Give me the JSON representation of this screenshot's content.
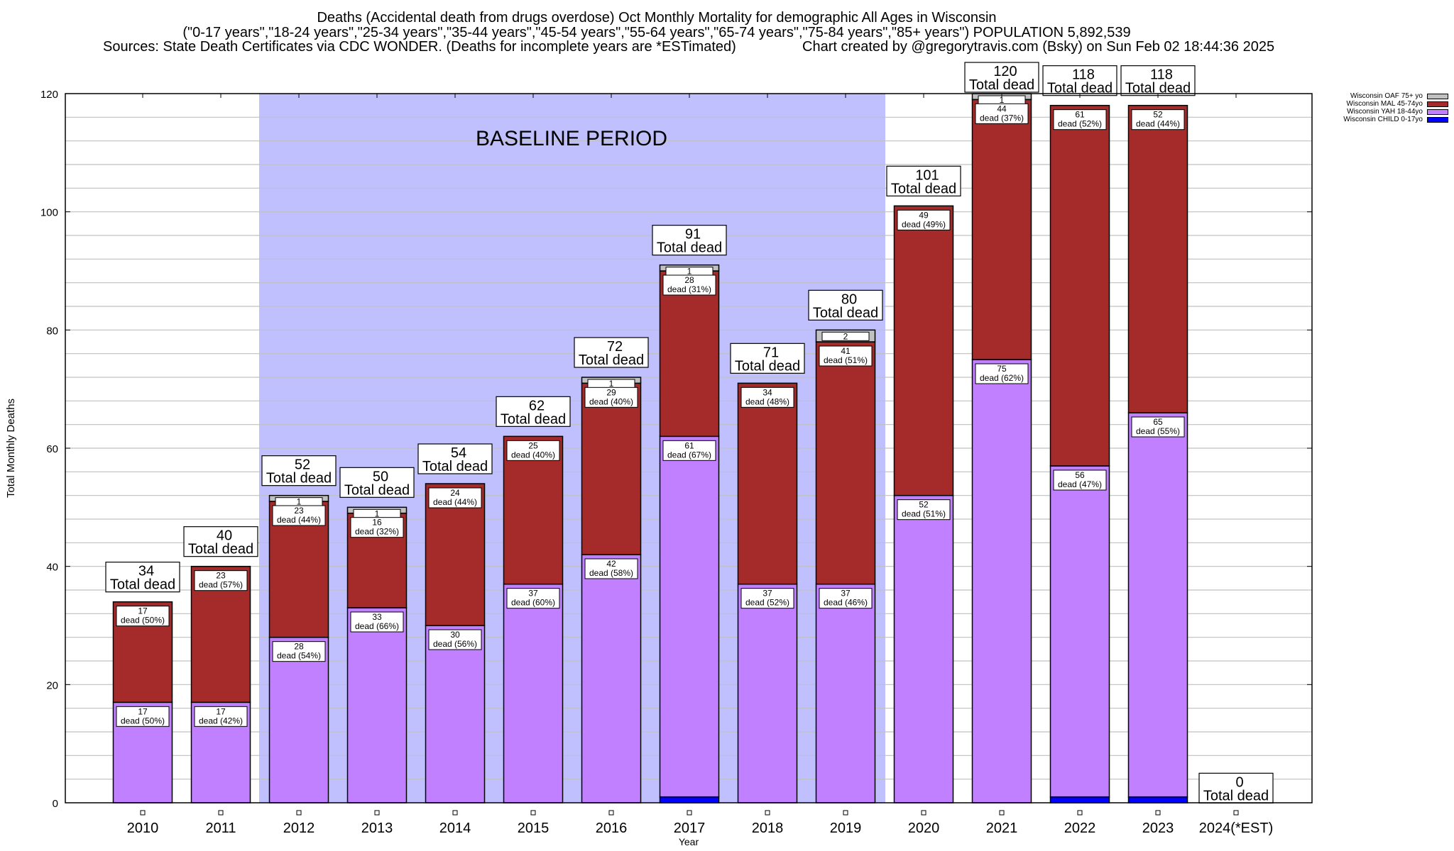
{
  "chart_data": {
    "type": "bar",
    "stacked": true,
    "title_lines": [
      "Deaths (Accidental death from drugs overdose) Oct Monthly Mortality for demographic All Ages in Wisconsin",
      "(\"0-17 years\",\"18-24 years\",\"25-34 years\",\"35-44 years\",\"45-54 years\",\"55-64 years\",\"65-74 years\",\"75-84 years\",\"85+ years\") POPULATION 5,892,539"
    ],
    "sources_text": "Sources: State Death Certificates via CDC WONDER. (Deaths for incomplete years are *ESTimated)",
    "credit_text": "Chart created by @gregorytravis.com (Bsky) on Sun Feb 02 18:44:36 2025",
    "xlabel": "Year",
    "ylabel": "Total Monthly Deaths",
    "ylim": [
      0,
      120
    ],
    "y_ticks": [
      0,
      20,
      40,
      60,
      80,
      100,
      120
    ],
    "grid_step": 4,
    "grid": true,
    "legend_position": "top-right",
    "categories": [
      "2010",
      "2011",
      "2012",
      "2013",
      "2014",
      "2015",
      "2016",
      "2017",
      "2018",
      "2019",
      "2020",
      "2021",
      "2022",
      "2023",
      "2024(*EST)"
    ],
    "series": [
      {
        "name": "Wisconsin CHILD 0-17yo",
        "color": "#0000ff",
        "values": [
          0,
          0,
          0,
          0,
          0,
          0,
          0,
          1,
          0,
          0,
          0,
          0,
          1,
          1,
          0
        ]
      },
      {
        "name": "Wisconsin YAH 18-44yo",
        "color": "#c080ff",
        "values": [
          17,
          17,
          28,
          33,
          30,
          37,
          42,
          61,
          37,
          37,
          52,
          75,
          56,
          65,
          0
        ]
      },
      {
        "name": "Wisconsin MAL 45-74yo",
        "color": "#a52a2a",
        "values": [
          17,
          23,
          23,
          16,
          24,
          25,
          29,
          28,
          34,
          41,
          49,
          44,
          61,
          52,
          0
        ]
      },
      {
        "name": "Wisconsin OAF 75+ yo",
        "color": "#c0c0c0",
        "values": [
          0,
          0,
          1,
          1,
          0,
          0,
          1,
          1,
          0,
          2,
          0,
          1,
          0,
          0,
          0
        ]
      }
    ],
    "totals": [
      34,
      40,
      52,
      50,
      54,
      62,
      72,
      91,
      71,
      80,
      101,
      120,
      118,
      118,
      0
    ],
    "total_label_suffix": "Total dead",
    "segment_labels": {
      "yah": [
        "17\ndead (50%)",
        "17\ndead (42%)",
        "28\ndead (54%)",
        "33\ndead (66%)",
        "30\ndead (56%)",
        "37\ndead (60%)",
        "42\ndead (58%)",
        "61\ndead (67%)",
        "37\ndead (52%)",
        "37\ndead (46%)",
        "52\ndead (51%)",
        "75\ndead (62%)",
        "56\ndead (47%)",
        "65\ndead (55%)",
        ""
      ],
      "mal": [
        "17\ndead (50%)",
        "23\ndead (57%)",
        "23\ndead (44%)",
        "16\ndead (32%)",
        "24\ndead (44%)",
        "25\ndead (40%)",
        "29\ndead (40%)",
        "28\ndead (31%)",
        "34\ndead (48%)",
        "41\ndead (51%)",
        "49\ndead (49%)",
        "44\ndead (37%)",
        "61\ndead (52%)",
        "52\ndead (44%)",
        ""
      ],
      "oaf": [
        "",
        "",
        "1",
        "1",
        "",
        "",
        "1",
        "1",
        "",
        "2",
        "",
        "1",
        "",
        "",
        ""
      ]
    },
    "annotation": {
      "text": "BASELINE PERIOD",
      "shade_from": "2012",
      "shade_to": "2019",
      "shade_color": "#c0c0ff"
    }
  }
}
